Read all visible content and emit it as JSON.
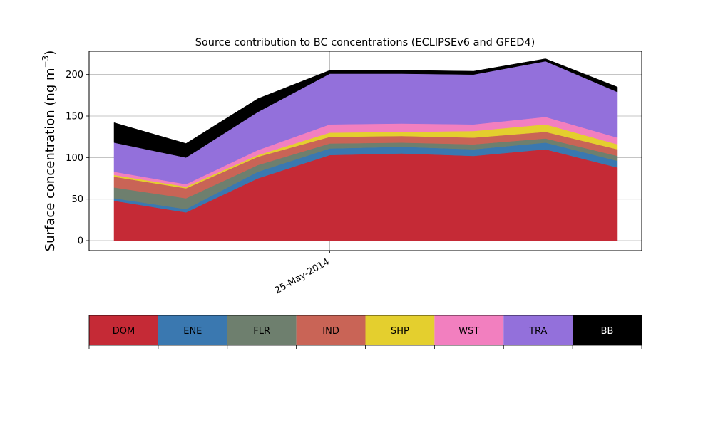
{
  "chart_data": {
    "type": "area",
    "title": "Source contribution to BC concentrations (ECLIPSEv6 and GFED4)",
    "xlabel": "",
    "ylabel_main": "Surface concentration (ng m",
    "ylabel_sup": "−3",
    "ylabel_close": ")",
    "x_points": 8,
    "x_ticks": [
      {
        "index": 3,
        "label": "25-May-2014"
      }
    ],
    "ylim": [
      -12,
      228
    ],
    "yticks": [
      0,
      50,
      100,
      150,
      200
    ],
    "grid": true,
    "series": [
      {
        "name": "DOM",
        "color": "#c52a36",
        "values": [
          48,
          34,
          75,
          103,
          105,
          102,
          110,
          88
        ]
      },
      {
        "name": "ENE",
        "color": "#3a78b0",
        "values": [
          3,
          4,
          8,
          8,
          8,
          8,
          8,
          8
        ]
      },
      {
        "name": "FLR",
        "color": "#6e7f6e",
        "values": [
          13,
          13,
          8,
          6,
          5,
          6,
          5,
          6
        ]
      },
      {
        "name": "IND",
        "color": "#c96456",
        "values": [
          13,
          12,
          10,
          8,
          8,
          8,
          8,
          8
        ]
      },
      {
        "name": "SHP",
        "color": "#e4cf2e",
        "values": [
          2,
          2,
          2,
          5,
          5,
          8,
          9,
          6
        ]
      },
      {
        "name": "WST",
        "color": "#f27fbf",
        "values": [
          4,
          3,
          6,
          10,
          10,
          8,
          9,
          8
        ]
      },
      {
        "name": "TRA",
        "color": "#9370db",
        "values": [
          35,
          32,
          46,
          61,
          60,
          60,
          67,
          55
        ]
      },
      {
        "name": "BB",
        "color": "#000000",
        "values": [
          24,
          17,
          16,
          4,
          4,
          4,
          3,
          6
        ]
      }
    ],
    "legend_position": "bottom"
  }
}
